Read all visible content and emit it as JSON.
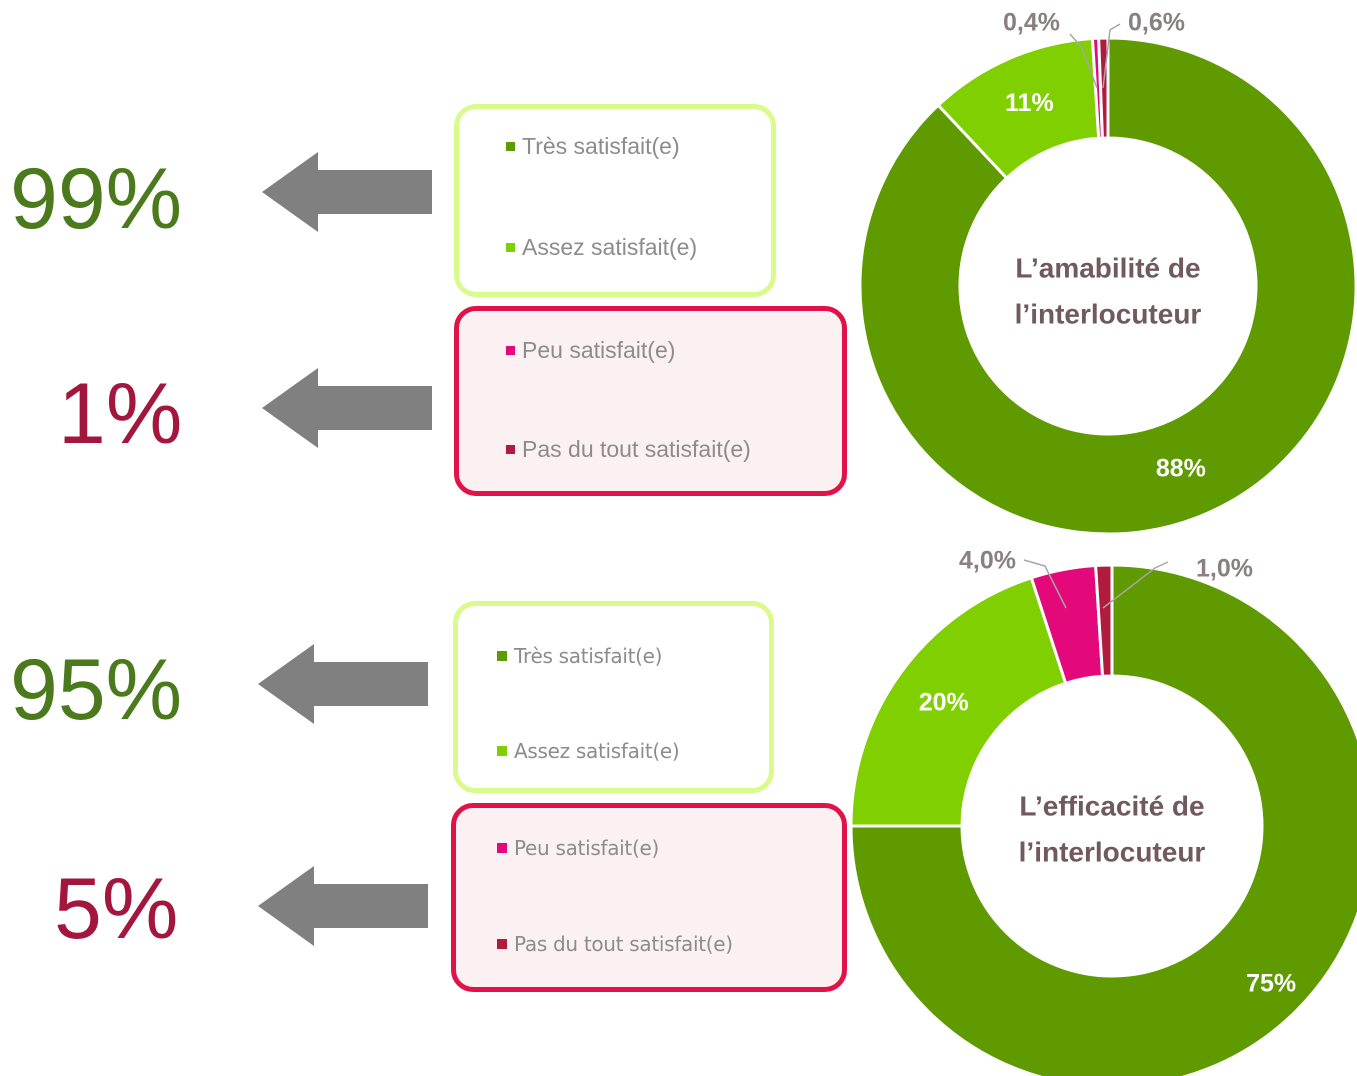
{
  "colors": {
    "tres_satisfait": "#5e9a00",
    "assez_satisfait": "#80cf00",
    "peu_satisfait": "#e3097b",
    "pas_du_tout": "#b01c3e",
    "positive_text": "#4a7a1c",
    "negative_text": "#a3173f",
    "arrow": "#808080",
    "center_text": "#705a5f",
    "outside_label": "#8a7f81"
  },
  "panels": [
    {
      "positive_summary": "99%",
      "negative_summary": "1%",
      "legend": [
        {
          "label": "Très satisfait(e)",
          "color": "#5e9a00"
        },
        {
          "label": "Assez satisfait(e)",
          "color": "#80cf00"
        },
        {
          "label": "Peu satisfait(e)",
          "color": "#e3097b"
        },
        {
          "label": "Pas du tout satisfait(e)",
          "color": "#b01c3e"
        }
      ]
    },
    {
      "positive_summary": "95%",
      "negative_summary": "5%",
      "legend": [
        {
          "label": "Très satisfait(e)",
          "color": "#5e9a00"
        },
        {
          "label": "Assez satisfait(e)",
          "color": "#80cf00"
        },
        {
          "label": "Peu satisfait(e)",
          "color": "#e3097b"
        },
        {
          "label": "Pas du tout satisfait(e)",
          "color": "#b01c3e"
        }
      ]
    }
  ],
  "chart_data": [
    {
      "type": "pie",
      "title": "L’amabilité de l’interlocuteur",
      "title_lines": [
        "L’amabilité de",
        "l’interlocuteur"
      ],
      "categories": [
        "Très satisfait(e)",
        "Assez satisfait(e)",
        "Peu satisfait(e)",
        "Pas du tout satisfait(e)"
      ],
      "values": [
        88,
        11,
        0.4,
        0.6
      ],
      "labels": [
        "88%",
        "11%",
        "0,4%",
        "0,6%"
      ],
      "colors": [
        "#5e9a00",
        "#80cf00",
        "#e3097b",
        "#b01c3e"
      ]
    },
    {
      "type": "pie",
      "title": "L’efficacité de l’interlocuteur",
      "title_lines": [
        "L’efficacité de",
        "l’interlocuteur"
      ],
      "categories": [
        "Très satisfait(e)",
        "Assez satisfait(e)",
        "Peu satisfait(e)",
        "Pas du tout satisfait(e)"
      ],
      "values": [
        75,
        20,
        4.0,
        1.0
      ],
      "labels": [
        "75%",
        "20%",
        "4,0%",
        "1,0%"
      ],
      "colors": [
        "#5e9a00",
        "#80cf00",
        "#e3097b",
        "#b01c3e"
      ]
    }
  ]
}
